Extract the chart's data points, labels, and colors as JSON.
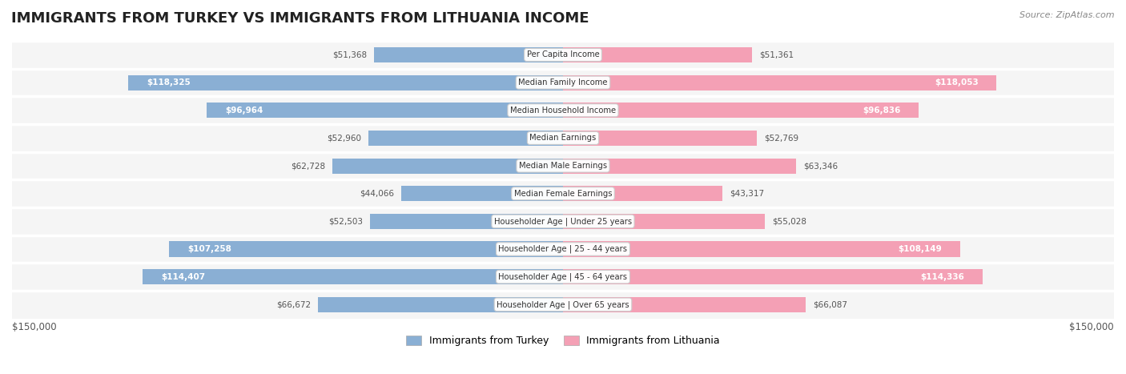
{
  "title": "IMMIGRANTS FROM TURKEY VS IMMIGRANTS FROM LITHUANIA INCOME",
  "source": "Source: ZipAtlas.com",
  "categories": [
    "Per Capita Income",
    "Median Family Income",
    "Median Household Income",
    "Median Earnings",
    "Median Male Earnings",
    "Median Female Earnings",
    "Householder Age | Under 25 years",
    "Householder Age | 25 - 44 years",
    "Householder Age | 45 - 64 years",
    "Householder Age | Over 65 years"
  ],
  "turkey_values": [
    51368,
    118325,
    96964,
    52960,
    62728,
    44066,
    52503,
    107258,
    114407,
    66672
  ],
  "lithuania_values": [
    51361,
    118053,
    96836,
    52769,
    63346,
    43317,
    55028,
    108149,
    114336,
    66087
  ],
  "turkey_labels": [
    "$51,368",
    "$118,325",
    "$96,964",
    "$52,960",
    "$62,728",
    "$44,066",
    "$52,503",
    "$107,258",
    "$114,407",
    "$66,672"
  ],
  "lithuania_labels": [
    "$51,361",
    "$118,053",
    "$96,836",
    "$52,769",
    "$63,346",
    "$43,317",
    "$55,028",
    "$108,149",
    "$114,336",
    "$66,087"
  ],
  "turkey_color": "#8aafd4",
  "lithuania_color": "#f4a0b5",
  "row_bg_color": "#f5f5f5",
  "max_value": 150000,
  "large_threshold": 80000,
  "legend_turkey": "Immigrants from Turkey",
  "legend_lithuania": "Immigrants from Lithuania",
  "xlabel_left": "$150,000",
  "xlabel_right": "$150,000"
}
